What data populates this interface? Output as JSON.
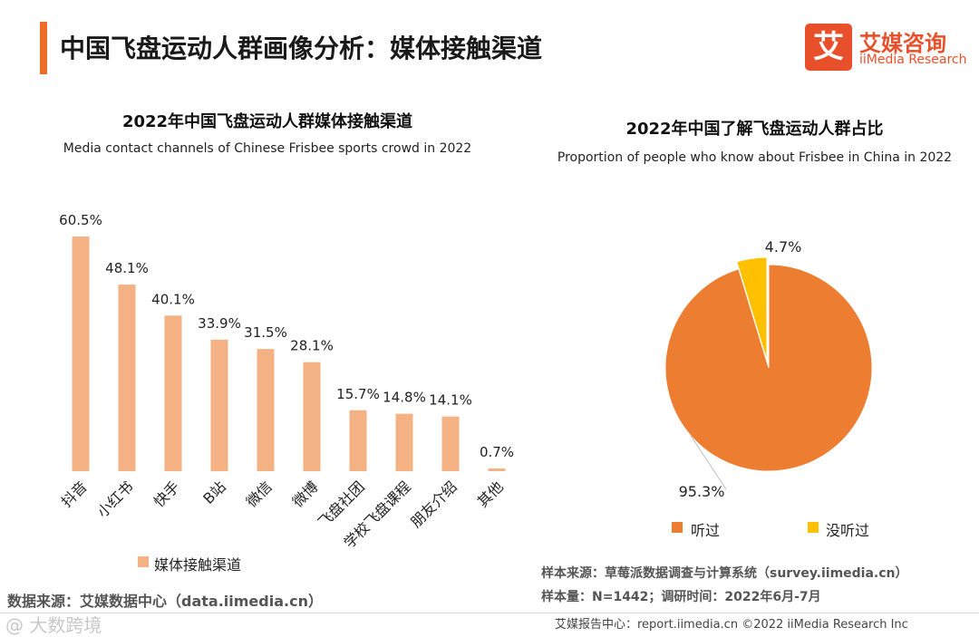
{
  "header": {
    "title": "中国飞盘运动人群画像分析：媒体接触渠道",
    "logo_mark": "艾",
    "logo_cn": "艾媒咨询",
    "logo_en": "iiMedia Research"
  },
  "colors": {
    "accent": "#ef6b2a",
    "bar": "#f4b183",
    "pie_main": "#ed7d31",
    "pie_minor": "#ffc000",
    "logo": "#e8502c"
  },
  "chart_data": [
    {
      "type": "bar",
      "title": "2022年中国飞盘运动人群媒体接触渠道",
      "subtitle": "Media contact channels of Chinese Frisbee sports crowd in 2022",
      "categories": [
        "抖音",
        "小红书",
        "快手",
        "B站",
        "微信",
        "微博",
        "飞盘社团",
        "学校飞盘课程",
        "朋友介绍",
        "其他"
      ],
      "series": [
        {
          "name": "媒体接触渠道",
          "values": [
            60.5,
            48.1,
            40.1,
            33.9,
            31.5,
            28.1,
            15.7,
            14.8,
            14.1,
            0.7
          ]
        }
      ],
      "data_labels": [
        "60.5%",
        "48.1%",
        "40.1%",
        "33.9%",
        "31.5%",
        "28.1%",
        "15.7%",
        "14.8%",
        "14.1%",
        "0.7%"
      ],
      "ylim": [
        0,
        60.5
      ],
      "legend": "bottom-left"
    },
    {
      "type": "pie",
      "title": "2022年中国了解飞盘运动人群占比",
      "subtitle": "Proportion of people who know about Frisbee in China in 2022",
      "slices": [
        {
          "label": "听过",
          "value": 95.3,
          "display": "95.3%"
        },
        {
          "label": "没听过",
          "value": 4.7,
          "display": "4.7%"
        }
      ],
      "legend": "bottom"
    }
  ],
  "sources": {
    "left": "数据来源：艾媒数据中心（data.iimedia.cn）",
    "sample_source": "样本来源：草莓派数据调查与计算系统（survey.iimedia.cn）",
    "sample_size": "样本量：N=1442；调研时间：2022年6月-7月"
  },
  "footer": {
    "text": "艾媒报告中心：report.iimedia.cn   ©2022  iiMedia Research  Inc"
  },
  "watermark": "@ 大数跨境"
}
